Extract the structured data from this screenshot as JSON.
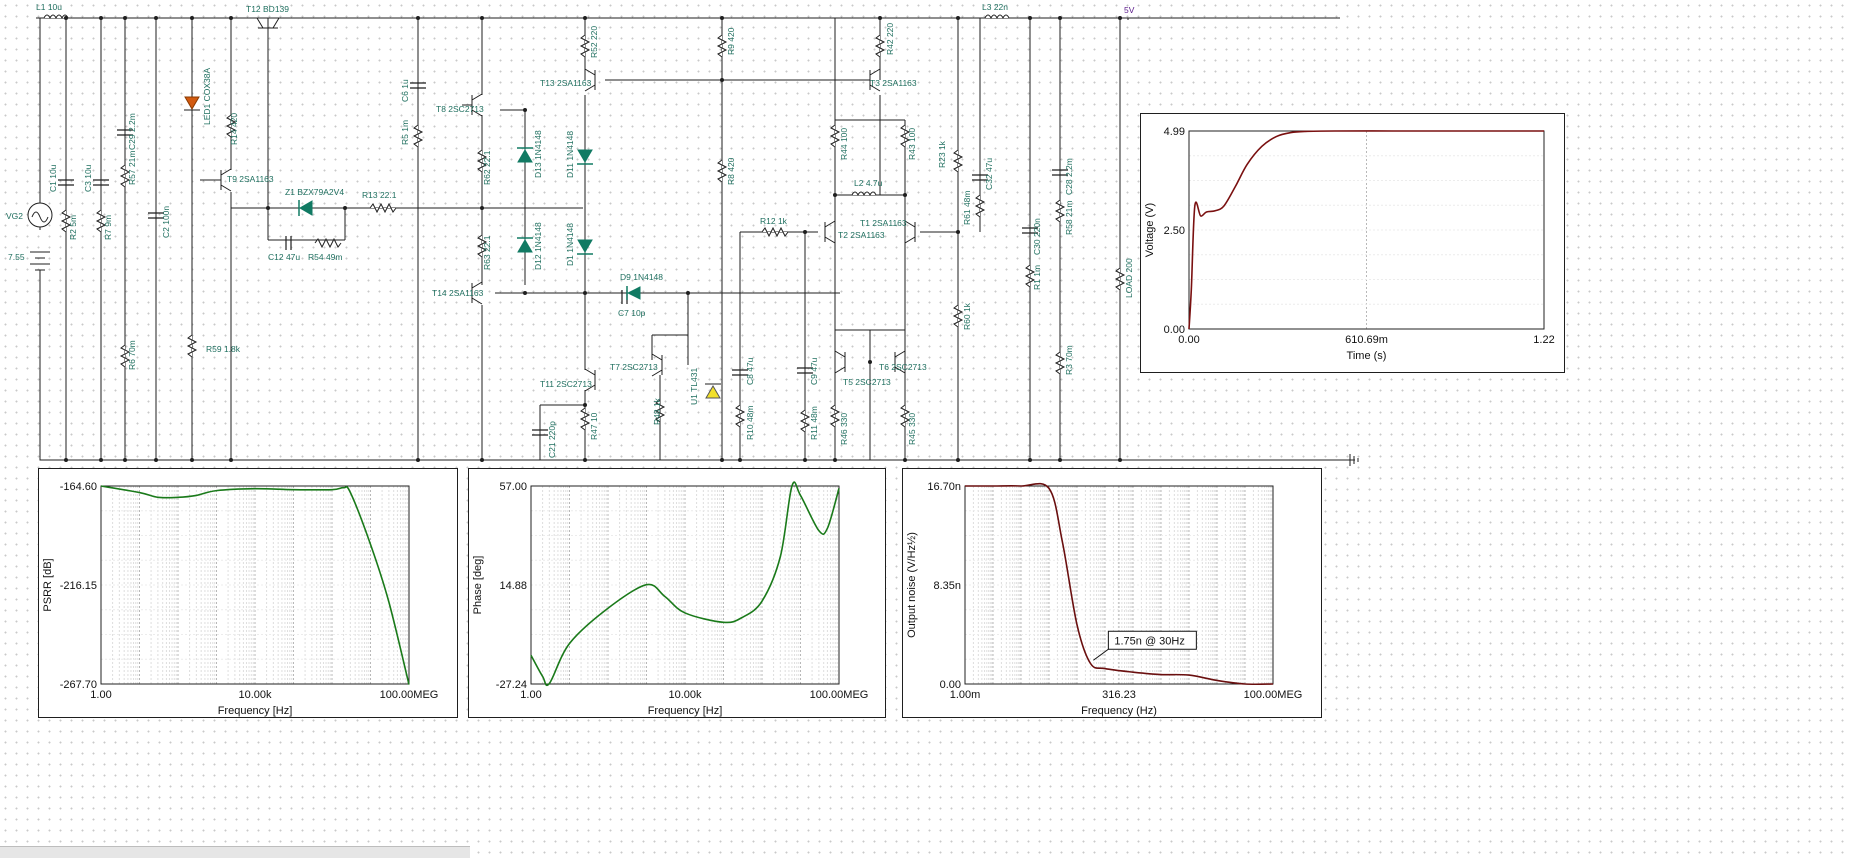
{
  "schematic": {
    "supply_label": "5V",
    "components": [
      {
        "id": "L1",
        "text": "L1 10u"
      },
      {
        "id": "T12",
        "text": "T12 BD139"
      },
      {
        "id": "L3",
        "text": "L3 22n"
      },
      {
        "id": "LED1",
        "text": "LED1 COX38A"
      },
      {
        "id": "R14",
        "text": "R14 420"
      },
      {
        "id": "T9",
        "text": "T9 2SA1163"
      },
      {
        "id": "Z1",
        "text": "Z1 BZX79A2V4"
      },
      {
        "id": "R13",
        "text": "R13 22.1"
      },
      {
        "id": "C12",
        "text": "C12 47u"
      },
      {
        "id": "R54",
        "text": "R54 49m"
      },
      {
        "id": "R59",
        "text": "R59 1.8k"
      },
      {
        "id": "VG2",
        "text": "VG2"
      },
      {
        "id": "V755",
        "text": "7.55"
      },
      {
        "id": "C1",
        "text": "C1 10u"
      },
      {
        "id": "R2",
        "text": "R2 5m"
      },
      {
        "id": "C3",
        "text": "C3 10u"
      },
      {
        "id": "R7",
        "text": "R7 9m"
      },
      {
        "id": "R57",
        "text": "R57 21m"
      },
      {
        "id": "C29",
        "text": "C29 2.2m"
      },
      {
        "id": "R6",
        "text": "R6 70m"
      },
      {
        "id": "C2",
        "text": "C2 100n"
      },
      {
        "id": "C6",
        "text": "C6 1u"
      },
      {
        "id": "R5",
        "text": "R5 1m"
      },
      {
        "id": "T8",
        "text": "T8 2SC2713"
      },
      {
        "id": "R62",
        "text": "R62 22.1"
      },
      {
        "id": "R63",
        "text": "R63 22.1"
      },
      {
        "id": "T14",
        "text": "T14 2SA1163"
      },
      {
        "id": "D13",
        "text": "D13 1N4148"
      },
      {
        "id": "D12",
        "text": "D12 1N4148"
      },
      {
        "id": "R52",
        "text": "R52 220"
      },
      {
        "id": "T13",
        "text": "T13 2SA1163"
      },
      {
        "id": "D11",
        "text": "D11 1N4148"
      },
      {
        "id": "D1",
        "text": "D1 1N4148"
      },
      {
        "id": "D9",
        "text": "D9 1N4148"
      },
      {
        "id": "C7",
        "text": "C7 10p"
      },
      {
        "id": "T7",
        "text": "T7 2SC2713"
      },
      {
        "id": "T11",
        "text": "T11 2SC2713"
      },
      {
        "id": "C21",
        "text": "C21 220p"
      },
      {
        "id": "R47",
        "text": "R47 10"
      },
      {
        "id": "R48",
        "text": "R48 1k"
      },
      {
        "id": "U1",
        "text": "U1 TL431"
      },
      {
        "id": "R9",
        "text": "R9 420"
      },
      {
        "id": "R8",
        "text": "R8 420"
      },
      {
        "id": "C8",
        "text": "C8 47u"
      },
      {
        "id": "R10",
        "text": "R10 48m"
      },
      {
        "id": "R12",
        "text": "R12 1k"
      },
      {
        "id": "C9",
        "text": "C9 47u"
      },
      {
        "id": "R11",
        "text": "R11 48m"
      },
      {
        "id": "R42",
        "text": "R42 220"
      },
      {
        "id": "T3",
        "text": "T3 2SA1163"
      },
      {
        "id": "R44",
        "text": "R44 100"
      },
      {
        "id": "R43",
        "text": "R43 100"
      },
      {
        "id": "L2",
        "text": "L2 4.7u"
      },
      {
        "id": "T1",
        "text": "T1 2SA1163"
      },
      {
        "id": "T2",
        "text": "T2 2SA1163"
      },
      {
        "id": "T5",
        "text": "T5 2SC2713"
      },
      {
        "id": "T6",
        "text": "T6 2SC2713"
      },
      {
        "id": "R46",
        "text": "R46 330"
      },
      {
        "id": "R45",
        "text": "R45 330"
      },
      {
        "id": "R23",
        "text": "R23 1k"
      },
      {
        "id": "R61",
        "text": "R61 48m"
      },
      {
        "id": "R60",
        "text": "R60 1k"
      },
      {
        "id": "C32",
        "text": "C32 47u"
      },
      {
        "id": "C30",
        "text": "C30 220n"
      },
      {
        "id": "R1",
        "text": "R1 1m"
      },
      {
        "id": "R58",
        "text": "R58 21m"
      },
      {
        "id": "C28",
        "text": "C28 2.2m"
      },
      {
        "id": "R3",
        "text": "R3 70m"
      },
      {
        "id": "LOAD",
        "text": "LOAD 200"
      }
    ]
  },
  "charts": {
    "transient": {
      "xlabel": "Time (s)",
      "ylabel": "Voltage (V)",
      "xticks": [
        "0.00",
        "610.69m",
        "1.22"
      ],
      "yticks": [
        "4.99",
        "2.50",
        "0.00"
      ],
      "color": "#7a1010"
    },
    "psrr": {
      "xlabel": "Frequency [Hz]",
      "ylabel": "PSRR [dB]",
      "xticks": [
        "1.00",
        "10.00k",
        "100.00MEG"
      ],
      "yticks": [
        "-164.60",
        "-216.15",
        "-267.70"
      ],
      "color": "#1a7a1a"
    },
    "phase": {
      "xlabel": "Frequency [Hz]",
      "ylabel": "Phase [deg]",
      "xticks": [
        "1.00",
        "10.00k",
        "100.00MEG"
      ],
      "yticks": [
        "57.00",
        "14.88",
        "-27.24"
      ],
      "color": "#1a7a1a"
    },
    "noise": {
      "xlabel": "Frequency (Hz)",
      "ylabel": "Output noise (V/Hz½)",
      "xticks": [
        "1.00m",
        "316.23",
        "100.00MEG"
      ],
      "yticks": [
        "16.70n",
        "8.35n",
        "0.00"
      ],
      "annotation": "1.75n @ 30Hz",
      "color": "#6a0f0f"
    }
  },
  "chart_data": [
    {
      "type": "line",
      "xlabel": "Time (s)",
      "ylabel": "Voltage (V)",
      "xlim": [
        0,
        1.22
      ],
      "ylim": [
        0,
        4.99
      ],
      "x": [
        0,
        0.008,
        0.02,
        0.04,
        0.06,
        0.09,
        0.12,
        0.16,
        0.2,
        0.25,
        0.3,
        0.35,
        0.4,
        0.5,
        0.7,
        0.9,
        1.22
      ],
      "y": [
        0,
        1.0,
        3.1,
        2.85,
        2.95,
        2.98,
        3.1,
        3.6,
        4.15,
        4.6,
        4.85,
        4.95,
        4.98,
        4.99,
        4.99,
        4.99,
        4.99
      ],
      "grid": true
    },
    {
      "type": "line",
      "xlabel": "Frequency [Hz]",
      "ylabel": "PSRR [dB]",
      "xscale": "log",
      "xlim": [
        1,
        100000000
      ],
      "ylim": [
        -267.7,
        -164.6
      ],
      "x": [
        1,
        10,
        30,
        100,
        300,
        1000,
        10000,
        100000,
        1000000,
        2000000,
        3000000,
        10000000,
        30000000,
        100000000
      ],
      "y": [
        -164.6,
        -168,
        -170.5,
        -170.5,
        -169.5,
        -167,
        -166,
        -166.5,
        -166.5,
        -165.5,
        -168,
        -195,
        -225,
        -268
      ],
      "grid": true
    },
    {
      "type": "line",
      "xlabel": "Frequency [Hz]",
      "ylabel": "Phase [deg]",
      "xscale": "log",
      "xlim": [
        1,
        100000000
      ],
      "ylim": [
        -27.24,
        57.0
      ],
      "x": [
        1,
        2,
        3,
        10,
        100,
        1000,
        3000,
        10000,
        100000,
        300000,
        1000000,
        3000000,
        6000000,
        10000000,
        30000000,
        50000000,
        100000000
      ],
      "y": [
        -15,
        -24,
        -27,
        -10,
        5,
        15,
        10,
        3,
        -1,
        1,
        8,
        27,
        57,
        53,
        38,
        39,
        56
      ],
      "grid": true
    },
    {
      "type": "line",
      "xlabel": "Frequency (Hz)",
      "ylabel": "Output noise (V/Hz½)",
      "xscale": "log",
      "xlim": [
        0.001,
        100000000
      ],
      "ylim": [
        0,
        16.7
      ],
      "x": [
        0.001,
        0.01,
        0.1,
        1,
        3,
        10,
        30,
        100,
        1000,
        10000,
        100000,
        1000000,
        10000000,
        100000000
      ],
      "y": [
        16.7,
        16.7,
        16.7,
        16.5,
        12.0,
        5.0,
        1.75,
        1.3,
        1.0,
        0.8,
        0.75,
        0.3,
        0.0,
        0.0
      ],
      "annotations": [
        {
          "text": "1.75n @ 30Hz",
          "x": 30,
          "y": 1.75
        }
      ],
      "grid": true
    }
  ]
}
